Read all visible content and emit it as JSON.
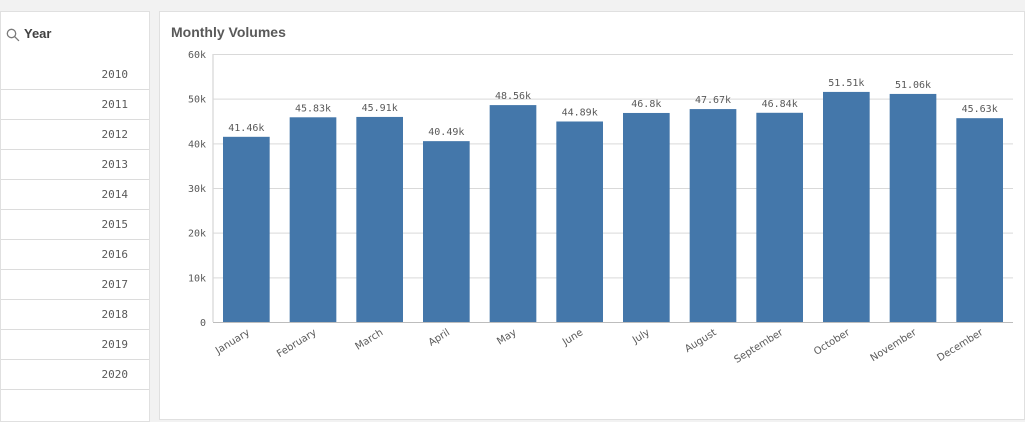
{
  "filter": {
    "title": "Year",
    "icon": "search-icon",
    "years": [
      "2010",
      "2011",
      "2012",
      "2013",
      "2014",
      "2015",
      "2016",
      "2017",
      "2018",
      "2019",
      "2020"
    ]
  },
  "chart_data": {
    "type": "bar",
    "title": "Monthly Volumes",
    "categories": [
      "January",
      "February",
      "March",
      "April",
      "May",
      "June",
      "July",
      "August",
      "September",
      "October",
      "November",
      "December"
    ],
    "values": [
      41460,
      45830,
      45910,
      40490,
      48560,
      44890,
      46800,
      47670,
      46840,
      51510,
      51060,
      45630
    ],
    "data_labels": [
      "41.46k",
      "45.83k",
      "45.91k",
      "40.49k",
      "48.56k",
      "44.89k",
      "46.8k",
      "47.67k",
      "46.84k",
      "51.51k",
      "51.06k",
      "45.63k"
    ],
    "yticks": [
      0,
      10000,
      20000,
      30000,
      40000,
      50000,
      60000
    ],
    "ytick_labels": [
      "0",
      "10k",
      "20k",
      "30k",
      "40k",
      "50k",
      "60k"
    ],
    "ylim": [
      0,
      60000
    ],
    "xlabel": "",
    "ylabel": "",
    "grid": true,
    "bar_color": "#4477aa"
  }
}
